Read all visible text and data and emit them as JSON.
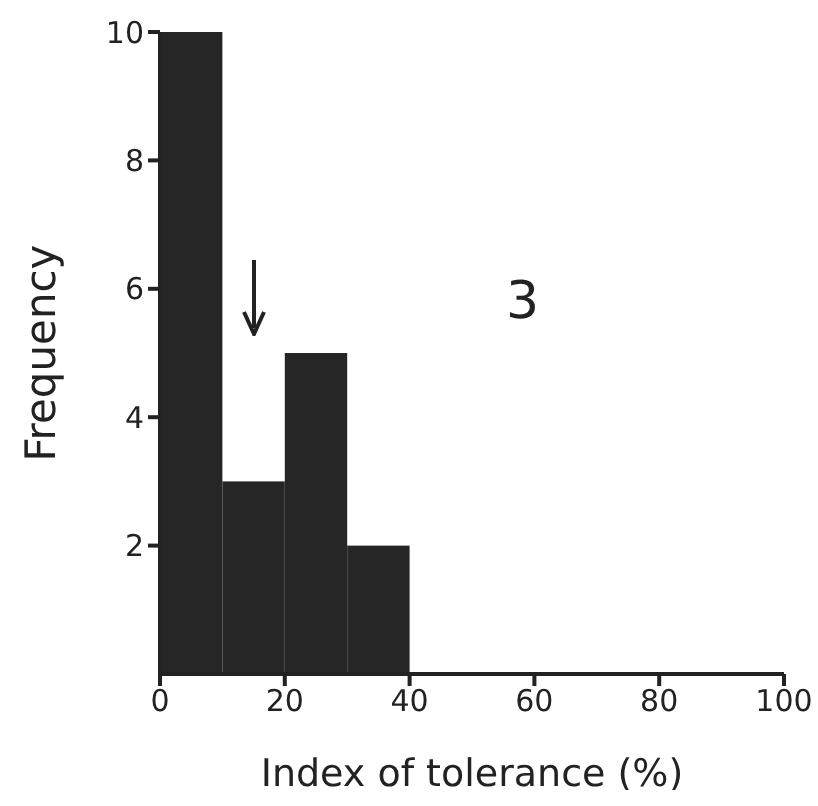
{
  "chart_data": {
    "type": "histogram",
    "xlabel": "Index of tolerance (%)",
    "ylabel": "Frequency",
    "bins": [
      0,
      10,
      20,
      30,
      40
    ],
    "values": [
      10,
      3,
      5,
      2
    ],
    "color": "#262626",
    "xlim": [
      0,
      100
    ],
    "xticks": [
      0,
      20,
      40,
      60,
      80,
      100
    ],
    "ylim": [
      0,
      10
    ],
    "yticks": [
      2,
      4,
      6,
      8,
      10
    ],
    "annotations": [
      "3"
    ]
  }
}
